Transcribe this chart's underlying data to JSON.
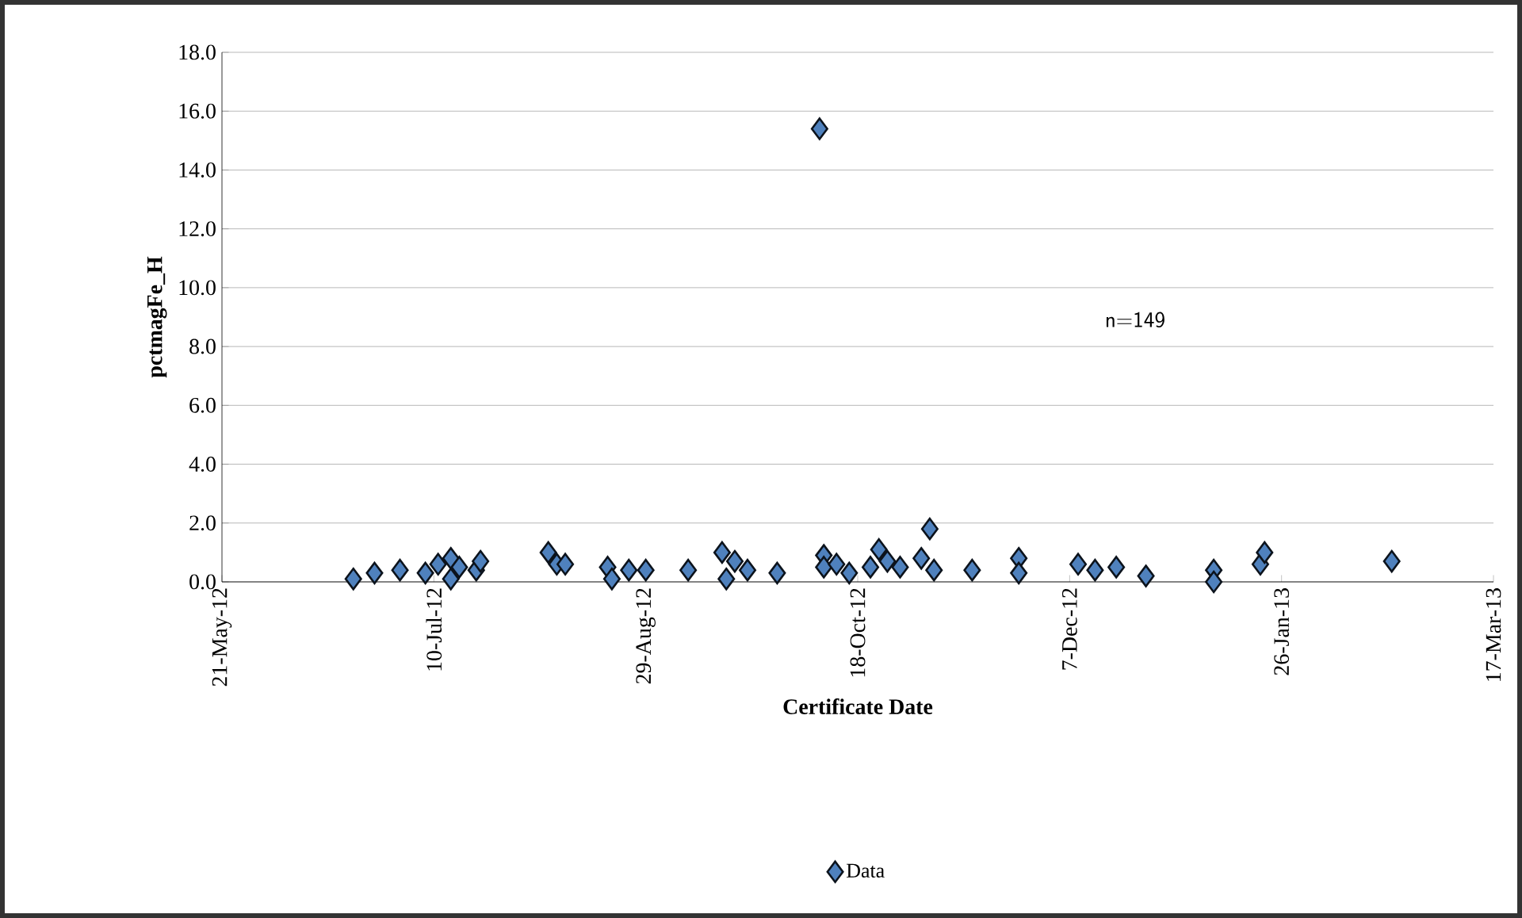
{
  "chart_data": {
    "type": "scatter",
    "xlabel": "Certificate Date",
    "ylabel": "pctmagFe_H",
    "annotations": [
      "n=149"
    ],
    "xlim": [
      "2012-05-21",
      "2013-03-17"
    ],
    "xticks": [
      {
        "value": "2012-05-21",
        "label": "21-May-12"
      },
      {
        "value": "2012-07-10",
        "label": "10-Jul-12"
      },
      {
        "value": "2012-08-29",
        "label": "29-Aug-12"
      },
      {
        "value": "2012-10-18",
        "label": "18-Oct-12"
      },
      {
        "value": "2012-12-07",
        "label": "7-Dec-12"
      },
      {
        "value": "2013-01-26",
        "label": "26-Jan-13"
      },
      {
        "value": "2013-03-17",
        "label": "17-Mar-13"
      }
    ],
    "ylim": [
      0,
      18
    ],
    "yticks": [
      {
        "value": 0,
        "label": "0.0"
      },
      {
        "value": 2,
        "label": "2.0"
      },
      {
        "value": 4,
        "label": "4.0"
      },
      {
        "value": 6,
        "label": "6.0"
      },
      {
        "value": 8,
        "label": "8.0"
      },
      {
        "value": 10,
        "label": "10.0"
      },
      {
        "value": 12,
        "label": "12.0"
      },
      {
        "value": 14,
        "label": "14.0"
      },
      {
        "value": 16,
        "label": "16.0"
      },
      {
        "value": 18,
        "label": "18.0"
      }
    ],
    "grid": "y",
    "legend": "bottom",
    "marker": "diamond",
    "series": [
      {
        "name": "Data",
        "color": "#4f81bd",
        "x": [
          "2012-06-21",
          "2012-06-26",
          "2012-07-02",
          "2012-07-08",
          "2012-07-11",
          "2012-07-14",
          "2012-07-14",
          "2012-07-16",
          "2012-07-20",
          "2012-07-21",
          "2012-08-06",
          "2012-08-08",
          "2012-08-10",
          "2012-08-20",
          "2012-08-21",
          "2012-08-25",
          "2012-08-29",
          "2012-09-08",
          "2012-09-16",
          "2012-09-17",
          "2012-09-19",
          "2012-09-22",
          "2012-09-29",
          "2012-10-09",
          "2012-10-10",
          "2012-10-10",
          "2012-10-13",
          "2012-10-16",
          "2012-10-21",
          "2012-10-23",
          "2012-10-25",
          "2012-10-28",
          "2012-11-02",
          "2012-11-04",
          "2012-11-05",
          "2012-11-14",
          "2012-11-25",
          "2012-11-25",
          "2012-12-09",
          "2012-12-13",
          "2012-12-18",
          "2012-12-25",
          "2013-01-10",
          "2013-01-10",
          "2013-01-21",
          "2013-01-22",
          "2013-02-21"
        ],
        "values": [
          0.1,
          0.3,
          0.4,
          0.3,
          0.6,
          0.8,
          0.1,
          0.5,
          0.4,
          0.7,
          1.0,
          0.6,
          0.6,
          0.5,
          0.1,
          0.4,
          0.4,
          0.4,
          1.0,
          0.1,
          0.7,
          0.4,
          0.3,
          15.4,
          0.9,
          0.5,
          0.6,
          0.3,
          0.5,
          1.1,
          0.7,
          0.5,
          0.8,
          1.8,
          0.4,
          0.4,
          0.8,
          0.3,
          0.6,
          0.4,
          0.5,
          0.2,
          0.4,
          0.0,
          0.6,
          1.0,
          0.7
        ]
      }
    ]
  }
}
